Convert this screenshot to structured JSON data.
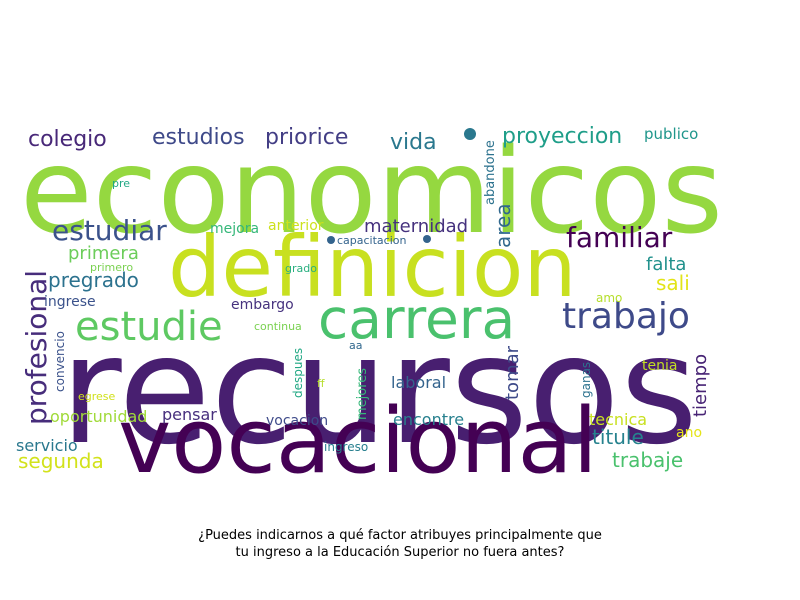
{
  "caption": {
    "line1": "¿Puedes indicarnos a qué factor atribuyes principalmente que",
    "line2": "tu ingreso a la Educación Superior no fuera antes?"
  },
  "words": [
    {
      "text": "economicos",
      "color": "#95d840"
    },
    {
      "text": "recursos",
      "color": "#481f70"
    },
    {
      "text": "definicion",
      "color": "#c8e020"
    },
    {
      "text": "vocacional",
      "color": "#440154"
    },
    {
      "text": "carrera",
      "color": "#4ac16d"
    },
    {
      "text": "estudie",
      "color": "#5ec962"
    },
    {
      "text": "trabajo",
      "color": "#3e4a89"
    },
    {
      "text": "profesional",
      "color": "#472d7b"
    },
    {
      "text": "estudiar",
      "color": "#3b528b"
    },
    {
      "text": "familiar",
      "color": "#440154"
    },
    {
      "text": "colegio",
      "color": "#482878"
    },
    {
      "text": "estudios",
      "color": "#3e4989"
    },
    {
      "text": "priorice",
      "color": "#433e85"
    },
    {
      "text": "vida",
      "color": "#2a788e"
    },
    {
      "text": "proyeccion",
      "color": "#1f9e89"
    },
    {
      "text": "publico",
      "color": "#1f968b"
    },
    {
      "text": "abandone",
      "color": "#2c728e"
    },
    {
      "text": "area",
      "color": "#31688e"
    },
    {
      "text": "pre",
      "color": "#22a884"
    },
    {
      "text": "mejora",
      "color": "#35b779"
    },
    {
      "text": "anterior",
      "color": "#cde11d"
    },
    {
      "text": "maternidad",
      "color": "#46327e"
    },
    {
      "text": "capacitacion",
      "color": "#33638d"
    },
    {
      "text": "primera",
      "color": "#6ccd5a"
    },
    {
      "text": "primero",
      "color": "#7ad151"
    },
    {
      "text": "grado",
      "color": "#29af7f"
    },
    {
      "text": "falta",
      "color": "#21918c"
    },
    {
      "text": "pregrado",
      "color": "#2c728e"
    },
    {
      "text": "sali",
      "color": "#e2e418"
    },
    {
      "text": "ingrese",
      "color": "#3b528b"
    },
    {
      "text": "embargo",
      "color": "#46327e"
    },
    {
      "text": "amo",
      "color": "#b5de2b"
    },
    {
      "text": "continua",
      "color": "#7ad151"
    },
    {
      "text": "convencio",
      "color": "#3b528b"
    },
    {
      "text": "aa",
      "color": "#31688e"
    },
    {
      "text": "despues",
      "color": "#22a884"
    },
    {
      "text": "mejores",
      "color": "#35b779"
    },
    {
      "text": "tomar",
      "color": "#3e4a89"
    },
    {
      "text": "ganas",
      "color": "#2c728e"
    },
    {
      "text": "tenia",
      "color": "#c2df23"
    },
    {
      "text": "tiempo",
      "color": "#482475"
    },
    {
      "text": "egrese",
      "color": "#d0e11c"
    },
    {
      "text": "ff",
      "color": "#b5de2b"
    },
    {
      "text": "laboral",
      "color": "#33638d"
    },
    {
      "text": "oportunidad",
      "color": "#a0da39"
    },
    {
      "text": "pensar",
      "color": "#472f7d"
    },
    {
      "text": "vocacion",
      "color": "#3e4a89"
    },
    {
      "text": "encontre",
      "color": "#27808e"
    },
    {
      "text": "tecnica",
      "color": "#c8e020"
    },
    {
      "text": "titule",
      "color": "#26828e"
    },
    {
      "text": "ano",
      "color": "#e5e419"
    },
    {
      "text": "servicio",
      "color": "#2a788e"
    },
    {
      "text": "ingreso",
      "color": "#277f8e"
    },
    {
      "text": "segunda",
      "color": "#d2e21b"
    },
    {
      "text": "trabaje",
      "color": "#4ac16d"
    }
  ]
}
